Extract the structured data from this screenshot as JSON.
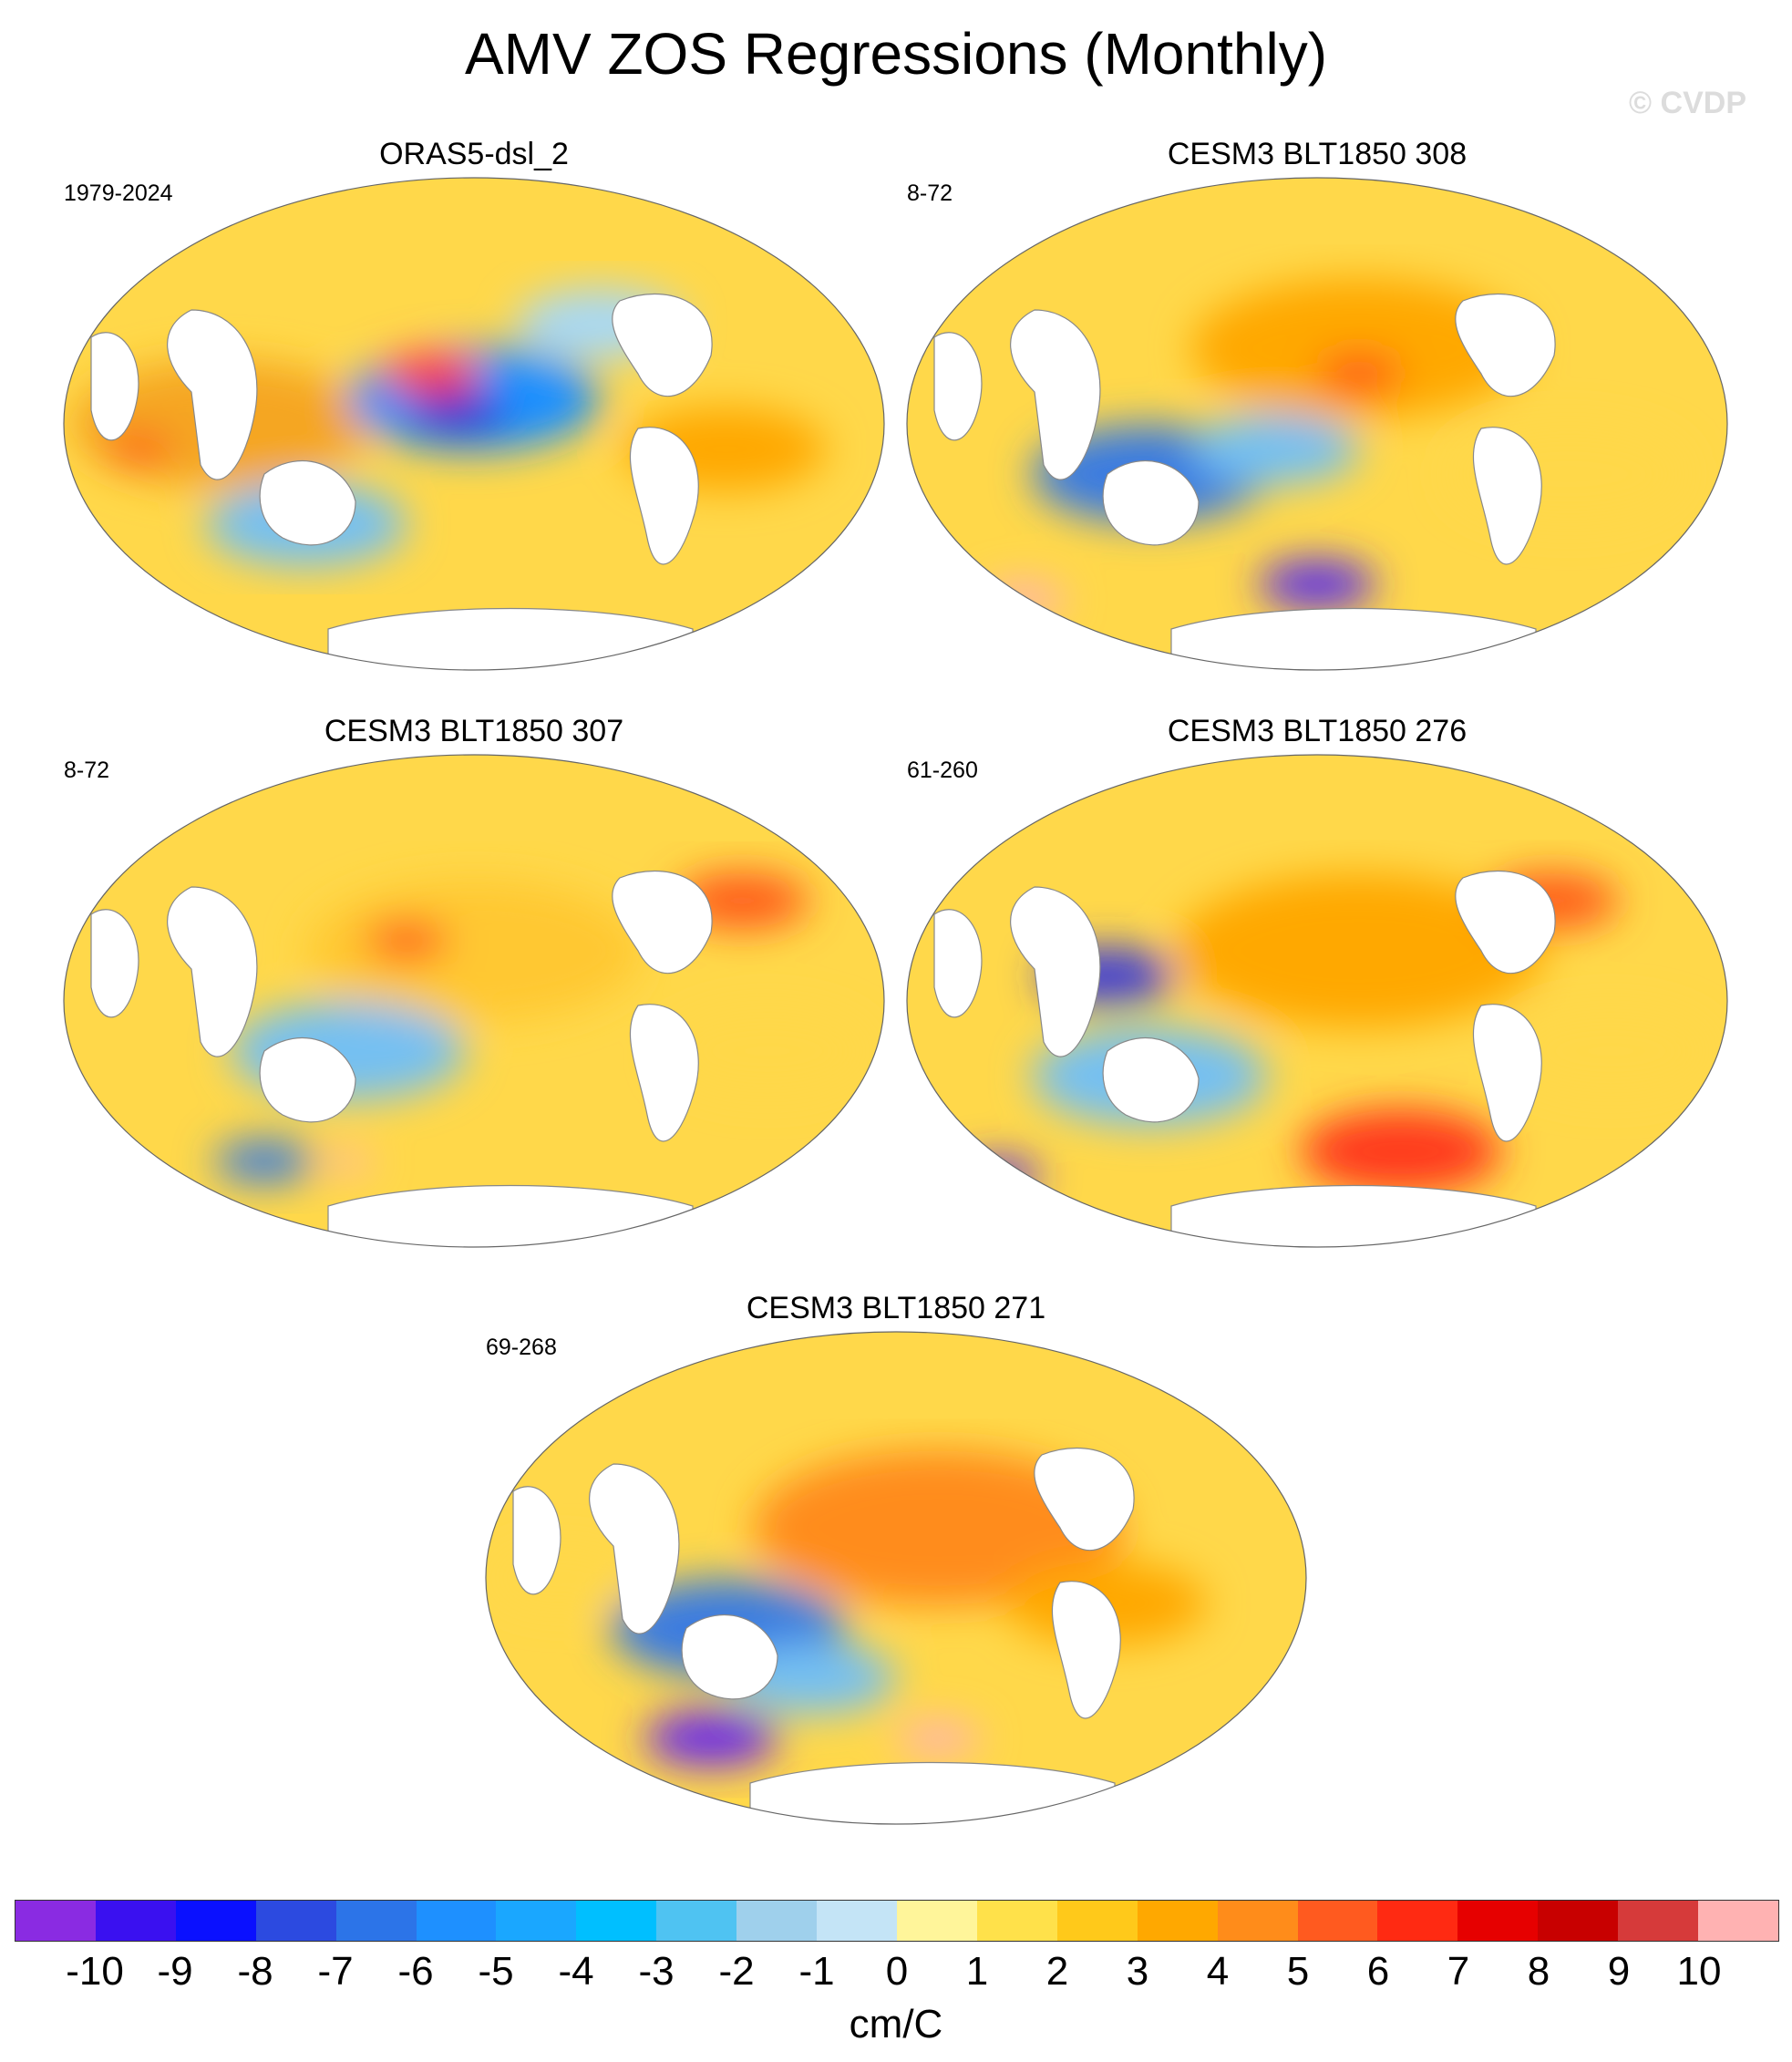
{
  "title": "AMV ZOS Regressions (Monthly)",
  "copyright": "© CVDP",
  "panels": [
    {
      "title": "ORAS5-dsl_2",
      "period": "1979-2024",
      "blobs": [
        [
          "#f5a623",
          0.2,
          0.5,
          0.18
        ],
        [
          "#1e90ff",
          0.5,
          0.45,
          0.15
        ],
        [
          "#2c2ccf",
          0.48,
          0.48,
          0.06
        ],
        [
          "#ff3b1f",
          0.45,
          0.4,
          0.06
        ],
        [
          "#74c0f2",
          0.3,
          0.7,
          0.12
        ],
        [
          "#ffa800",
          0.8,
          0.55,
          0.12
        ],
        [
          "#ff4a1f",
          0.1,
          0.55,
          0.04
        ],
        [
          "#a7d8f5",
          0.65,
          0.3,
          0.1
        ]
      ]
    },
    {
      "title": "CESM3 BLT1850 308",
      "period": "8-72",
      "blobs": [
        [
          "#ffa800",
          0.55,
          0.35,
          0.2
        ],
        [
          "#3a7be0",
          0.3,
          0.6,
          0.14
        ],
        [
          "#ff3b1f",
          0.55,
          0.4,
          0.05
        ],
        [
          "#5b2ee8",
          0.5,
          0.82,
          0.07
        ],
        [
          "#ffb2b2",
          0.15,
          0.85,
          0.05
        ],
        [
          "#ffd84a",
          0.8,
          0.6,
          0.14
        ],
        [
          "#74c0f2",
          0.45,
          0.55,
          0.1
        ]
      ]
    },
    {
      "title": "CESM3 BLT1850 307",
      "period": "8-72",
      "blobs": [
        [
          "#ffc832",
          0.5,
          0.4,
          0.2
        ],
        [
          "#74c0f2",
          0.35,
          0.6,
          0.14
        ],
        [
          "#ff5a1f",
          0.82,
          0.3,
          0.08
        ],
        [
          "#3a7be0",
          0.25,
          0.82,
          0.06
        ],
        [
          "#ff3b1f",
          0.42,
          0.38,
          0.05
        ],
        [
          "#ffd84a",
          0.85,
          0.6,
          0.12
        ],
        [
          "#ffb2b2",
          0.35,
          0.82,
          0.03
        ]
      ]
    },
    {
      "title": "CESM3 BLT1850 276",
      "period": "61-260",
      "blobs": [
        [
          "#ffa800",
          0.55,
          0.4,
          0.22
        ],
        [
          "#3a3ad8",
          0.25,
          0.45,
          0.08
        ],
        [
          "#74c0f2",
          0.3,
          0.65,
          0.14
        ],
        [
          "#ff3b1f",
          0.6,
          0.8,
          0.12
        ],
        [
          "#ff5a1f",
          0.78,
          0.3,
          0.08
        ],
        [
          "#5b2ee8",
          0.12,
          0.85,
          0.05
        ],
        [
          "#ffd84a",
          0.85,
          0.6,
          0.12
        ]
      ]
    },
    {
      "title": "CESM3 BLT1850 271",
      "period": "69-268",
      "blobs": [
        [
          "#ff8c1a",
          0.55,
          0.4,
          0.22
        ],
        [
          "#3a7be0",
          0.3,
          0.6,
          0.14
        ],
        [
          "#6a2ae8",
          0.28,
          0.82,
          0.08
        ],
        [
          "#ffb2b2",
          0.55,
          0.82,
          0.05
        ],
        [
          "#ffa800",
          0.75,
          0.55,
          0.12
        ],
        [
          "#ffd84a",
          0.1,
          0.5,
          0.08
        ],
        [
          "#74c0f2",
          0.4,
          0.7,
          0.1
        ]
      ]
    }
  ],
  "colorbar": {
    "colors": [
      "#8a2be2",
      "#3a10f0",
      "#0a10ff",
      "#2c4ae0",
      "#2c74e8",
      "#1e90ff",
      "#1aa7ff",
      "#00bfff",
      "#4fc3f2",
      "#9fd0ec",
      "#c4e4f6",
      "#fff59a",
      "#ffe14a",
      "#ffc91a",
      "#ffa800",
      "#ff8c1a",
      "#ff5a1f",
      "#ff2a12",
      "#e60000",
      "#c80000",
      "#d63a3a",
      "#ffb2b2"
    ],
    "labels": [
      "-10",
      "-9",
      "-8",
      "-7",
      "-6",
      "-5",
      "-4",
      "-3",
      "-2",
      "-1",
      "0",
      "1",
      "2",
      "3",
      "4",
      "5",
      "6",
      "7",
      "8",
      "9",
      "10"
    ],
    "unit": "cm/C"
  }
}
